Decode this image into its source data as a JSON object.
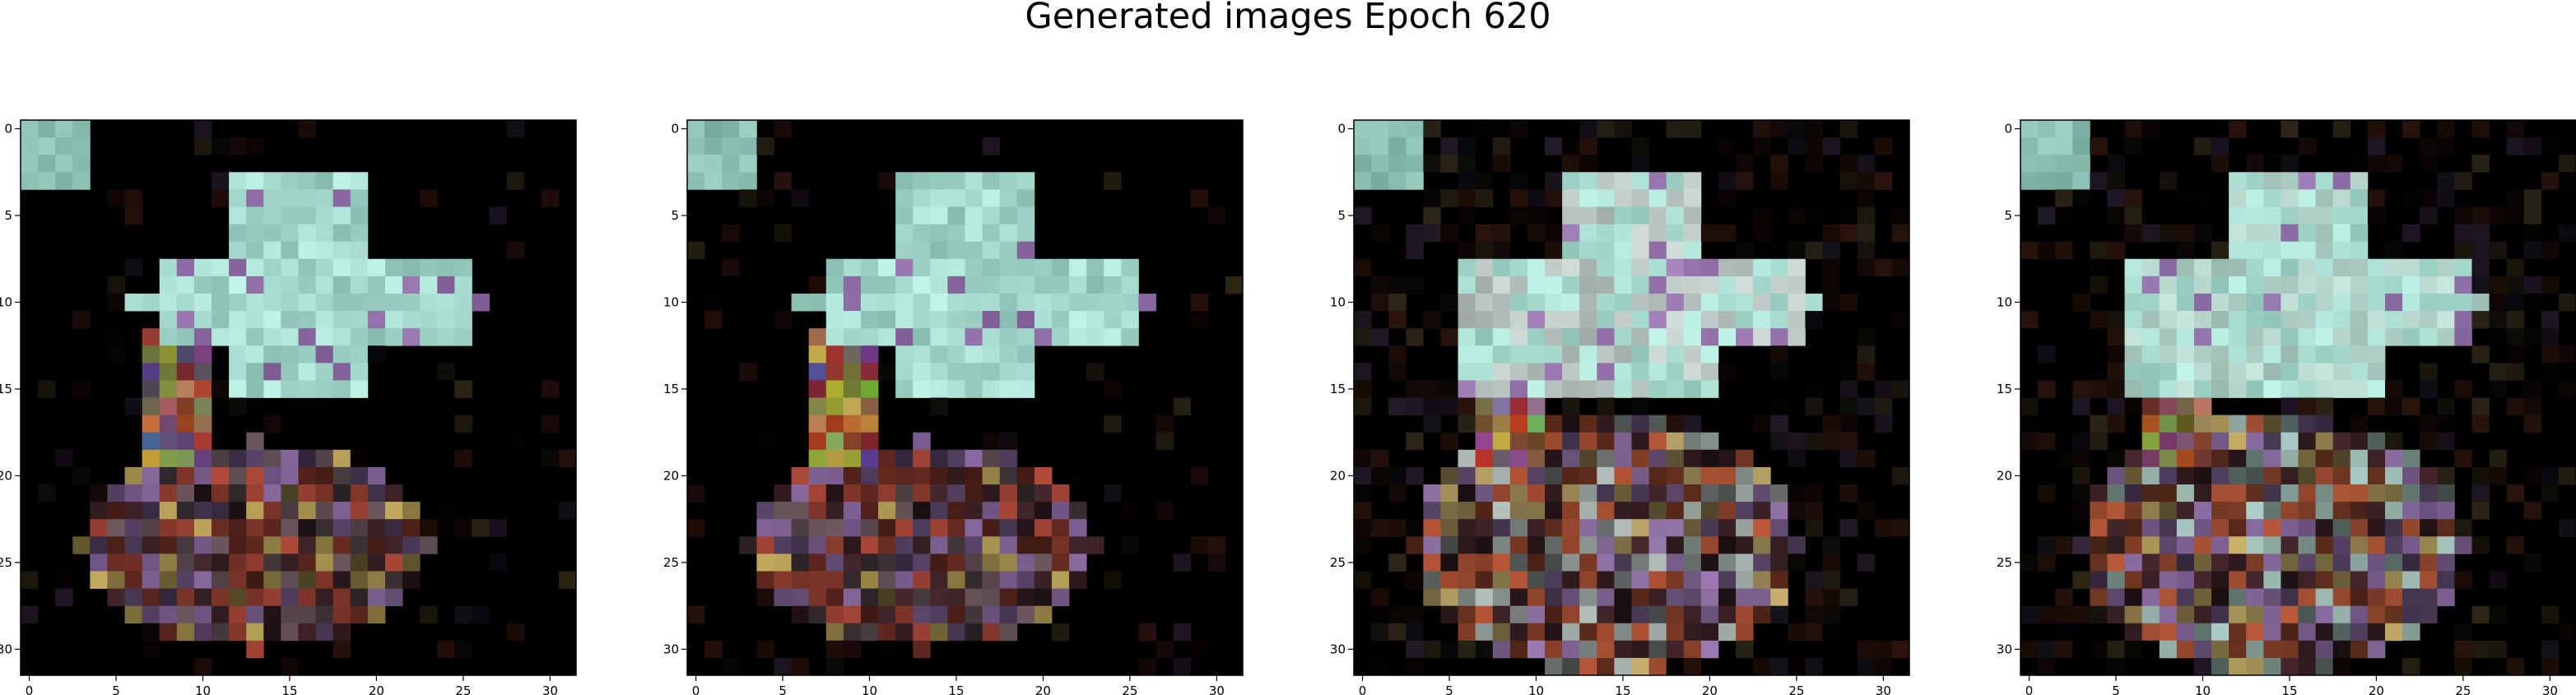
{
  "title": "Generated images Epoch 620",
  "chart_data": [
    {
      "type": "heatmap",
      "grid_size": [
        32,
        32
      ],
      "xlim": [
        -0.5,
        31.5
      ],
      "ylim": [
        31.5,
        -0.5
      ],
      "xticks": [
        0,
        5,
        10,
        15,
        20,
        25,
        30
      ],
      "yticks": [
        0,
        5,
        10,
        15,
        20,
        25,
        30
      ],
      "background": "#000000",
      "dominant_colors": [
        "#a8dccf",
        "#9fd4c8",
        "#b04a3a",
        "#8a6aa0",
        "#c8b060"
      ]
    },
    {
      "type": "heatmap",
      "grid_size": [
        32,
        32
      ],
      "xlim": [
        -0.5,
        31.5
      ],
      "ylim": [
        31.5,
        -0.5
      ],
      "xticks": [
        0,
        5,
        10,
        15,
        20,
        25,
        30
      ],
      "yticks": [
        0,
        5,
        10,
        15,
        20,
        25,
        30
      ],
      "background": "#000000",
      "dominant_colors": [
        "#a8dccf",
        "#9fd4c8",
        "#b04a3a",
        "#8a6aa0",
        "#c8b060"
      ]
    },
    {
      "type": "heatmap",
      "grid_size": [
        32,
        32
      ],
      "xlim": [
        -0.5,
        31.5
      ],
      "ylim": [
        31.5,
        -0.5
      ],
      "xticks": [
        0,
        5,
        10,
        15,
        20,
        25,
        30
      ],
      "yticks": [
        0,
        5,
        10,
        15,
        20,
        25,
        30
      ],
      "background": "#000000",
      "dominant_colors": [
        "#a8dccf",
        "#b8c4c0",
        "#c05a3a",
        "#9a7ab0",
        "#c8b070"
      ]
    },
    {
      "type": "heatmap",
      "grid_size": [
        32,
        32
      ],
      "xlim": [
        -0.5,
        31.5
      ],
      "ylim": [
        31.5,
        -0.5
      ],
      "xticks": [
        0,
        5,
        10,
        15,
        20,
        25,
        30
      ],
      "yticks": [
        0,
        5,
        10,
        15,
        20,
        25,
        30
      ],
      "background": "#000000",
      "dominant_colors": [
        "#a8dccf",
        "#b0d0c8",
        "#b85a3a",
        "#9070a8",
        "#c8b068"
      ]
    }
  ]
}
